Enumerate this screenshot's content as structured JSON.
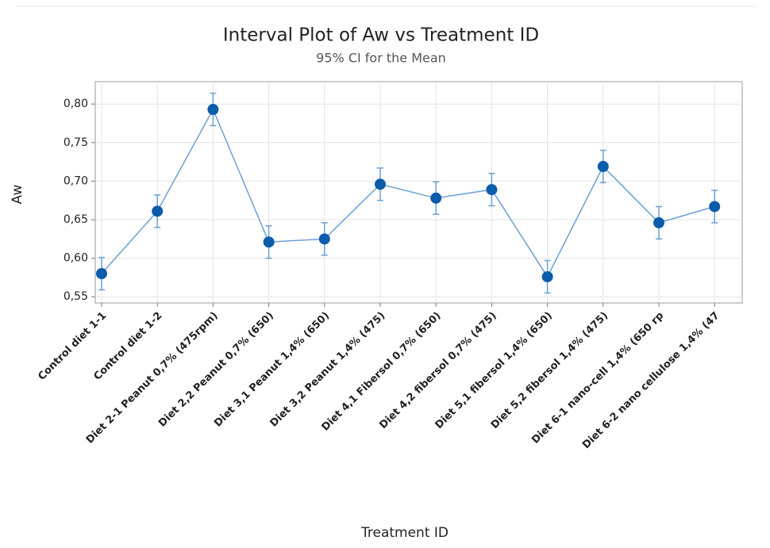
{
  "chart_data": {
    "type": "interval",
    "title": "Interval Plot of Aw vs Treatment ID",
    "subtitle": "95% CI for the Mean",
    "x_label": "Treatment ID",
    "y_label": "Aw",
    "categories": [
      "Control diet 1-1",
      "Control diet 1-2",
      "Diet 2-1 Peanut 0,7% (475rpm)",
      "Diet 2,2 Peanut 0,7% (650)",
      "Diet 3,1 Peanut 1,4% (650)",
      "Diet 3,2 Peanut 1,4% (475)",
      "Diet 4,1 Fibersol 0,7% (650)",
      "Diet 4,2 fibersol 0,7% (475)",
      "Diet 5,1 fibersol 1,4% (650)",
      "Diet 5,2 fibersol 1,4% (475)",
      "Diet 6-1 nano-cell 1,4% (650 rp",
      "Diet 6-2 nano cellulose 1,4% (47"
    ],
    "values": [
      0.58,
      0.661,
      0.793,
      0.621,
      0.625,
      0.696,
      0.678,
      0.689,
      0.576,
      0.719,
      0.646,
      0.667
    ],
    "errors": [
      0.021,
      0.021,
      0.021,
      0.021,
      0.021,
      0.021,
      0.021,
      0.021,
      0.021,
      0.021,
      0.021,
      0.021
    ],
    "color": "#0b5cab",
    "line_color": "#6b9fd3",
    "ylim": [
      0.542,
      0.829
    ],
    "yticks": [
      {
        "value": 0.55,
        "label": "0,55"
      },
      {
        "value": 0.6,
        "label": "0,60"
      },
      {
        "value": 0.65,
        "label": "0,65"
      },
      {
        "value": 0.7,
        "label": "0,70"
      },
      {
        "value": 0.75,
        "label": "0,75"
      },
      {
        "value": 0.8,
        "label": "0,80"
      }
    ],
    "grid": true
  }
}
